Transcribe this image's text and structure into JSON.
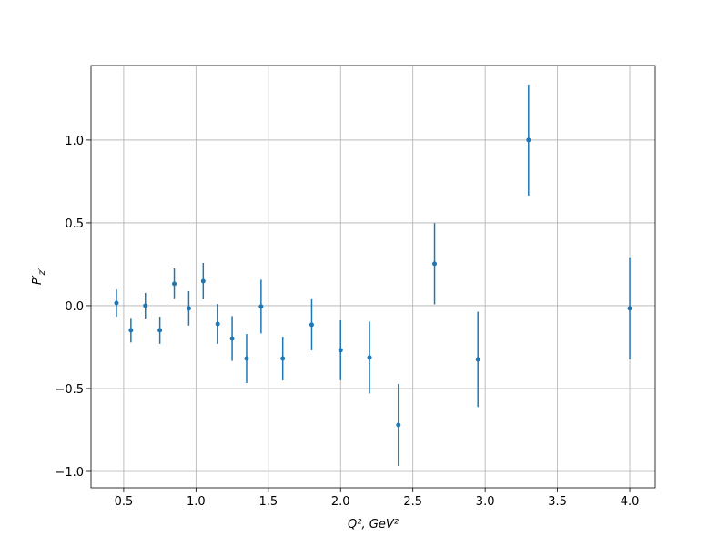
{
  "chart_data": {
    "type": "errorbar",
    "xlabel": "Q², GeV²",
    "ylabel": [
      "P′",
      "z′"
    ],
    "x": [
      0.45,
      0.55,
      0.65,
      0.75,
      0.85,
      0.95,
      1.05,
      1.15,
      1.25,
      1.35,
      1.45,
      1.6,
      1.8,
      2.0,
      2.2,
      2.4,
      2.65,
      2.95,
      3.3,
      4.0
    ],
    "series": [
      {
        "color": "#1f77b4",
        "values": [
          0.016,
          -0.148,
          0.0,
          -0.148,
          0.132,
          -0.016,
          0.148,
          -0.11,
          -0.198,
          -0.319,
          -0.005,
          -0.319,
          -0.115,
          -0.269,
          -0.313,
          -0.72,
          0.253,
          -0.324,
          1.0,
          -0.016
        ],
        "errors": [
          0.082,
          0.074,
          0.077,
          0.082,
          0.093,
          0.104,
          0.11,
          0.12,
          0.135,
          0.148,
          0.162,
          0.132,
          0.154,
          0.181,
          0.217,
          0.247,
          0.245,
          0.288,
          0.335,
          0.308
        ]
      }
    ],
    "xlim": [
      0.274,
      4.176
    ],
    "ylim": [
      -1.099,
      1.45
    ],
    "xticks": [
      0.5,
      {
        "value": 1.0,
        "label": "1.0"
      },
      1.5,
      {
        "value": 2.0,
        "label": "2.0"
      },
      2.5,
      {
        "value": 3.0,
        "label": "3.0"
      },
      3.5,
      {
        "value": 4.0,
        "label": "4.0"
      }
    ],
    "yticks": [
      {
        "value": -1.0,
        "label": "−1.0"
      },
      {
        "value": -0.5,
        "label": "−0.5"
      },
      {
        "value": 0,
        "label": "0.0"
      },
      0.5,
      {
        "value": 1.0,
        "label": "1.0"
      }
    ],
    "grid": true
  }
}
